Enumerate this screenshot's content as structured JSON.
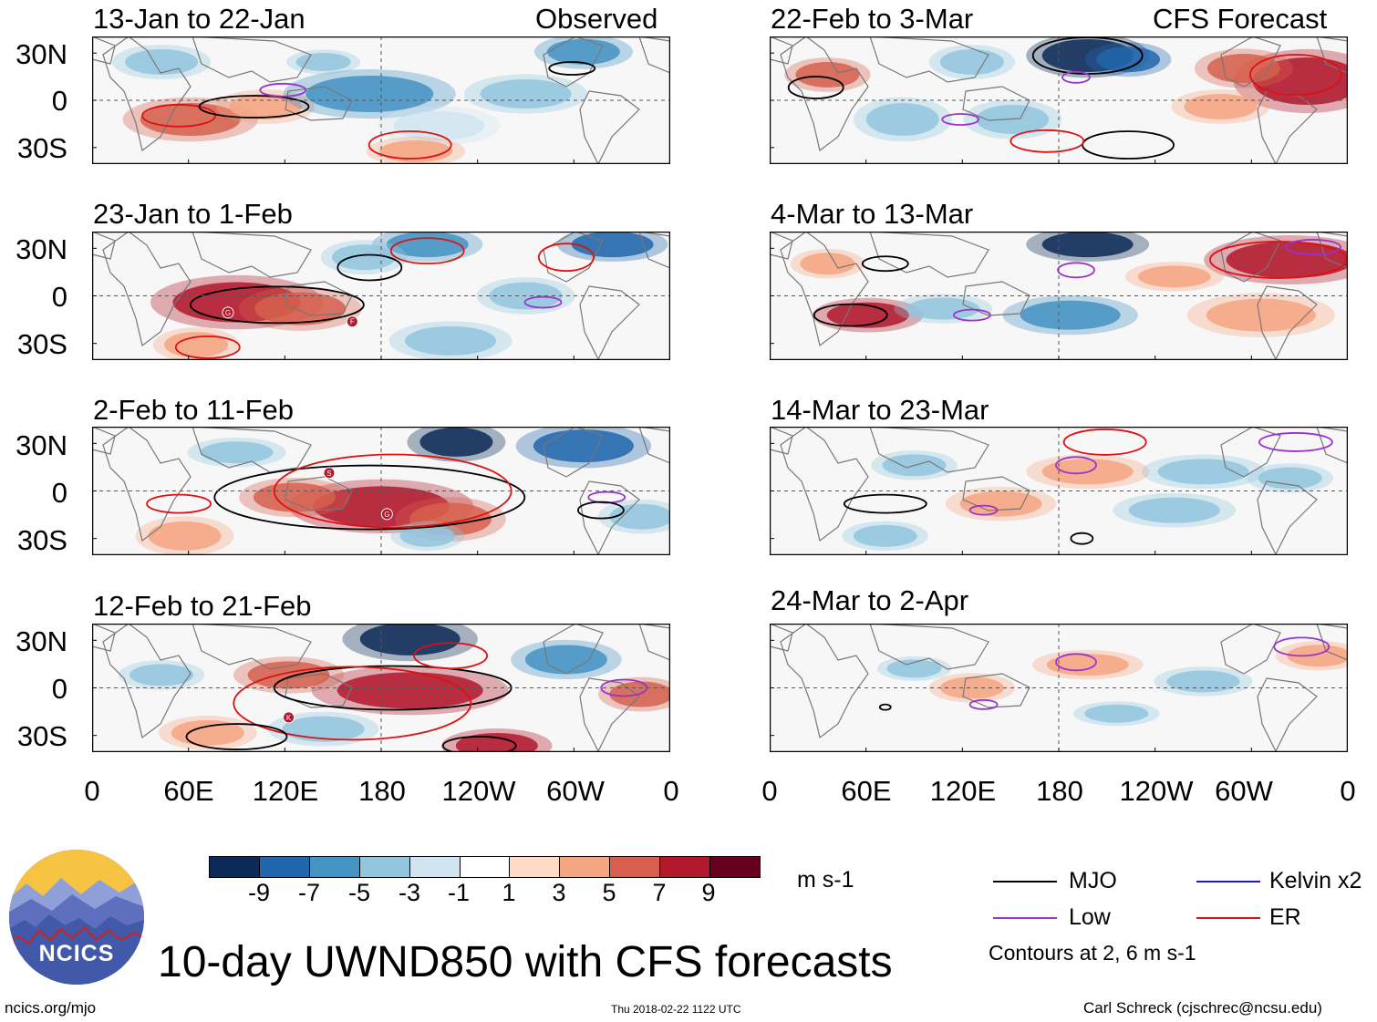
{
  "colors": {
    "scale": [
      "#0b2a57",
      "#2166ac",
      "#4393c3",
      "#92c5de",
      "#d1e5f0",
      "#ffffff",
      "#fddbc7",
      "#f4a582",
      "#d6604d",
      "#b2182b",
      "#67001f"
    ],
    "mjo": "#000000",
    "low": "#9933cc",
    "kelvin": "#1a1acc",
    "er": "#dd1111",
    "grid": "#555555",
    "coast": "#777777",
    "logo_sky": "#f6c342",
    "logo_hills": "#4a5fa8",
    "logo_bottom": "#2a3a86"
  },
  "panels": [
    {
      "id": "obs1",
      "title": "13-Jan to 22-Jan",
      "title_right": "Observed",
      "column": "left",
      "row": 0
    },
    {
      "id": "obs2",
      "title": "23-Jan to 1-Feb",
      "title_right": "",
      "column": "left",
      "row": 1
    },
    {
      "id": "obs3",
      "title": "2-Feb to 11-Feb",
      "title_right": "",
      "column": "left",
      "row": 2
    },
    {
      "id": "obs4",
      "title": "12-Feb to 21-Feb",
      "title_right": "",
      "column": "left",
      "row": 3
    },
    {
      "id": "fc1",
      "title": "22-Feb to 3-Mar",
      "title_right": "CFS Forecast",
      "column": "right",
      "row": 0
    },
    {
      "id": "fc2",
      "title": "4-Mar to 13-Mar",
      "title_right": "",
      "column": "right",
      "row": 1
    },
    {
      "id": "fc3",
      "title": "14-Mar to 23-Mar",
      "title_right": "",
      "column": "right",
      "row": 2
    },
    {
      "id": "fc4",
      "title": "24-Mar to 2-Apr",
      "title_right": "",
      "column": "right",
      "row": 3
    }
  ],
  "lat_labels": [
    "30N",
    "0",
    "30S"
  ],
  "lon_labels": [
    "0",
    "60E",
    "120E",
    "180",
    "120W",
    "60W",
    "0"
  ],
  "colorbar": {
    "labels": [
      "-9",
      "-7",
      "-5",
      "-3",
      "-1",
      "1",
      "3",
      "5",
      "7",
      "9"
    ],
    "units": "m s-1"
  },
  "legend": {
    "mjo": "MJO",
    "kelvin": "Kelvin x2",
    "low": "Low",
    "er": "ER",
    "contours": "Contours at 2, 6 m s-1"
  },
  "logo_text": "NCICS",
  "main_title": "10-day UWND850 with CFS forecasts",
  "footer": {
    "url": "ncics.org/mjo",
    "timestamp": "Thu 2018-02-22 1122 UTC",
    "credit": "Carl Schreck (cjschrec@ncsu.edu)"
  },
  "storm_markers": [
    {
      "panel": "obs2",
      "letter": "G"
    },
    {
      "panel": "obs2",
      "letter": "F"
    },
    {
      "panel": "obs3",
      "letter": "S"
    },
    {
      "panel": "obs3",
      "letter": "G"
    },
    {
      "panel": "obs4",
      "letter": "K"
    }
  ]
}
